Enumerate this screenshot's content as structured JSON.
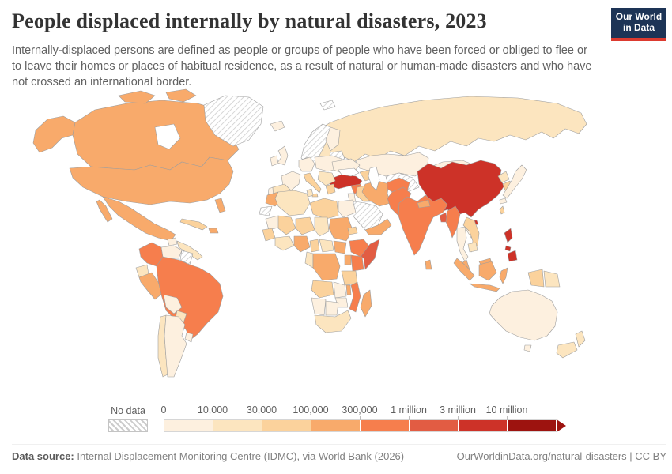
{
  "header": {
    "title": "People displaced internally by natural disasters, 2023",
    "subtitle": "Internally-displaced persons are defined as people or groups of people who have been forced or obliged to flee or to leave their homes or places of habitual residence, as a result of natural or human-made disasters and who have not crossed an international border."
  },
  "logo": {
    "line1": "Our World",
    "line2": "in Data",
    "bg_color": "#1d3456",
    "accent_color": "#dc3a2f"
  },
  "footer": {
    "source_label": "Data source:",
    "source_text": " Internal Displacement Monitoring Centre (IDMC), via World Bank (2026)",
    "link_text": "OurWorldinData.org/natural-disasters | CC BY"
  },
  "chart_data": {
    "type": "choropleth",
    "year": "2023",
    "no_data_label": "No data",
    "tick_labels": [
      "0",
      "10,000",
      "30,000",
      "100,000",
      "300,000",
      "1 million",
      "3 million",
      "10 million"
    ],
    "colors": [
      "#fdf0df",
      "#fce5bf",
      "#fbd29c",
      "#f8aa6b",
      "#f67e4d",
      "#e25c43",
      "#cd3228",
      "#9d130f"
    ],
    "bin_ranges": [
      "0-10,000",
      "10,000-30,000",
      "30,000-100,000",
      "100,000-300,000",
      "300,000-1 million",
      "1 million-3 million",
      "3 million-10 million",
      "over 10 million"
    ],
    "border_color": "#9e9e9e",
    "no_data_hatch_color": "#cccccc",
    "regions": {
      "canada": 3,
      "canada_arctic": 3,
      "alaska": 3,
      "usa": 3,
      "mexico": 3,
      "guatemala": 0,
      "central_america": 1,
      "cuba": 2,
      "hispaniola": 3,
      "greenland": "nd",
      "iceland": 0,
      "colombia": 4,
      "venezuela": 0,
      "guyanas": "nd",
      "ecuador": 1,
      "peru": 3,
      "brazil": 4,
      "bolivia": 0,
      "paraguay": 1,
      "chile": 1,
      "argentina": 0,
      "uruguay": 0,
      "uk": 0,
      "ireland": 0,
      "norway_sweden": "nd",
      "finland": 0,
      "baltics_belarus": "nd",
      "denmark": 0,
      "germany_central": 0,
      "poland_east": 0,
      "ukraine": 0,
      "france": 0,
      "portugal": 0,
      "spain": 1,
      "italy": 2,
      "balkans": 1,
      "greece": 2,
      "svalbard": "nd",
      "russia": 1,
      "kazakhstan": 0,
      "central_asia": "nd",
      "caucasus": 2,
      "mongolia": 0,
      "china": 6,
      "north_korea": 1,
      "south_korea": 2,
      "japan": 0,
      "taiwan": 2,
      "turkey": 6,
      "syria": 4,
      "iraq": 2,
      "jordan_israel": 0,
      "saudi_arabia": "nd",
      "yemen_oman": 3,
      "iran": 3,
      "afghanistan": 4,
      "pakistan": 4,
      "morocco": 3,
      "western_sahara": "nd",
      "algeria": 1,
      "tunisia": 1,
      "libya": 2,
      "egypt": 0,
      "mauritania": 0,
      "mali": 2,
      "niger": 2,
      "chad": 1,
      "sudan": 3,
      "eritrea": 2,
      "senegal_guinea": 2,
      "west_africa": 1,
      "nigeria": 3,
      "cameroon": 2,
      "car": 1,
      "south_sudan": 3,
      "ethiopia": 4,
      "somalia": 5,
      "kenya": 4,
      "uganda": 3,
      "drc": 3,
      "congo_gabon": 1,
      "tanzania": 2,
      "angola": 2,
      "zambia": 0,
      "malawi": 3,
      "mozambique": 4,
      "zimbabwe": 0,
      "madagascar": 3,
      "namibia": 0,
      "botswana": 0,
      "south_africa": 1,
      "india": 4,
      "nepal": 3,
      "sri_lanka": 3,
      "bangladesh": 5,
      "myanmar": 4,
      "thailand": 0,
      "laos": 0,
      "vietnam": 2,
      "cambodia": 1,
      "malaysia": 3,
      "sumatra": 3,
      "borneo": 3,
      "java": 3,
      "sulawesi": 3,
      "indonesia_papua": 2,
      "png": 1,
      "philippines": 6,
      "australia": 0,
      "tasmania": 0,
      "new_zealand": 1
    }
  }
}
